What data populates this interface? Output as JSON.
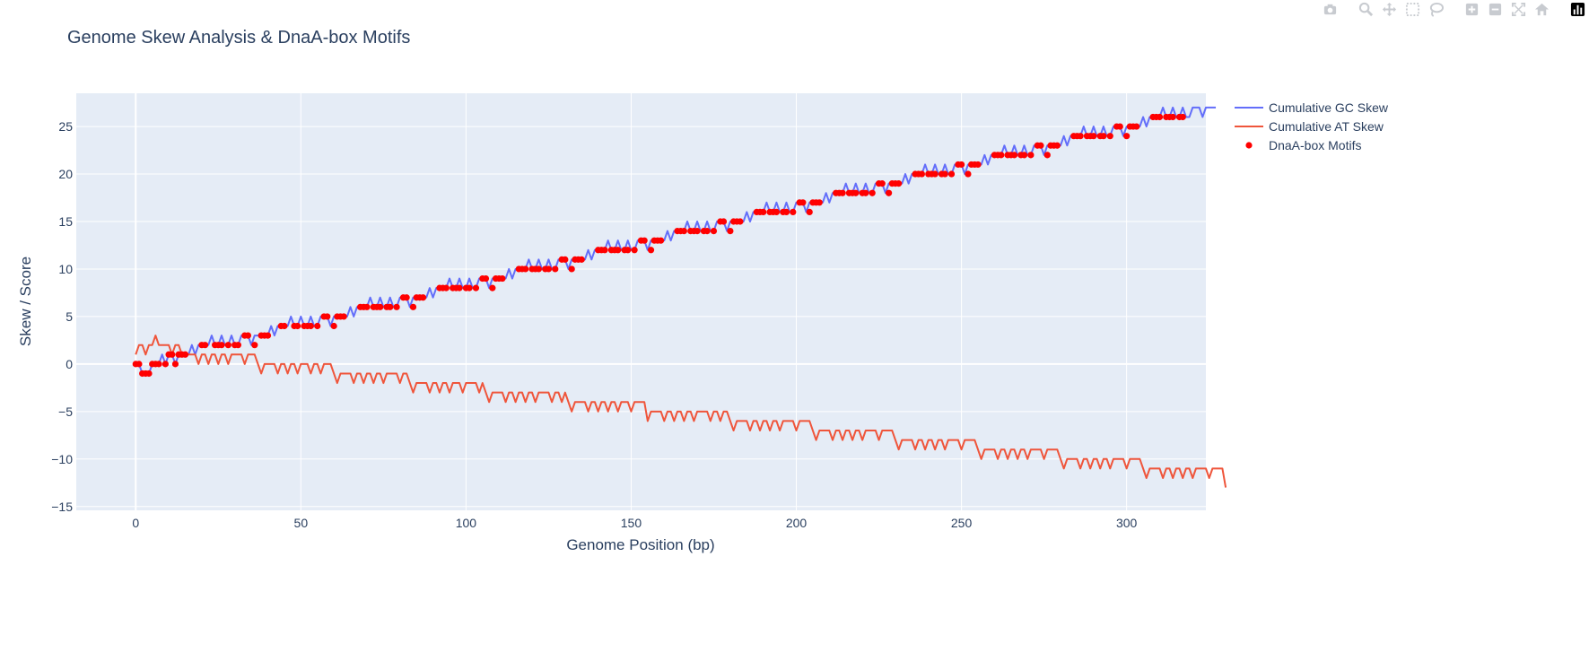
{
  "modebar": {
    "buttons": [
      {
        "name": "camera-icon",
        "group": 0
      },
      {
        "name": "zoom-icon",
        "group": 1
      },
      {
        "name": "pan-icon",
        "group": 1
      },
      {
        "name": "box-select-icon",
        "group": 1
      },
      {
        "name": "lasso-select-icon",
        "group": 1
      },
      {
        "name": "zoom-in-icon",
        "group": 2
      },
      {
        "name": "zoom-out-icon",
        "group": 2
      },
      {
        "name": "autoscale-icon",
        "group": 2
      },
      {
        "name": "reset-axes-icon",
        "group": 2
      },
      {
        "name": "plotly-logo-icon",
        "group": 3
      }
    ]
  },
  "colors": {
    "plot_bg": "#e5ecf6",
    "grid": "#ffffff",
    "text": "#2a3f5f",
    "gc": "#636efa",
    "at": "#ef553b",
    "motif": "#ff0000",
    "icon": "#c8cbd0"
  },
  "chart_data": {
    "type": "line",
    "title": "Genome Skew Analysis & DnaA-box Motifs",
    "xlabel": "Genome Position (bp)",
    "ylabel": "Skew / Score",
    "xlim": [
      -18,
      324
    ],
    "ylim": [
      -15.4,
      28.5
    ],
    "xticks": [
      0,
      50,
      100,
      150,
      200,
      250,
      300
    ],
    "yticks": [
      -15,
      -10,
      -5,
      0,
      5,
      10,
      15,
      20,
      25
    ],
    "ytick_labels": [
      "−15",
      "−10",
      "−5",
      "0",
      "5",
      "10",
      "15",
      "20",
      "25"
    ],
    "grid": true,
    "legend_position": "right",
    "series": [
      {
        "name": "Cumulative GC Skew",
        "kind": "line",
        "x_start": 0,
        "x_step": 1,
        "values": [
          0,
          0,
          -1,
          -1,
          -1,
          0,
          0,
          0,
          1,
          0,
          1,
          1,
          0,
          1,
          1,
          1,
          1,
          2,
          1,
          2,
          2,
          2,
          2,
          3,
          2,
          2,
          3,
          2,
          2,
          3,
          2,
          2,
          3,
          3,
          3,
          2,
          3,
          3,
          3,
          3,
          3,
          4,
          3,
          4,
          4,
          4,
          4,
          5,
          4,
          4,
          5,
          4,
          4,
          5,
          4,
          4,
          5,
          5,
          5,
          4,
          5,
          5,
          5,
          5,
          5,
          6,
          5,
          6,
          6,
          6,
          6,
          7,
          6,
          6,
          7,
          6,
          6,
          7,
          6,
          6,
          7,
          7,
          7,
          6,
          7,
          7,
          7,
          7,
          7,
          8,
          7,
          8,
          8,
          8,
          8,
          9,
          8,
          8,
          9,
          8,
          8,
          9,
          8,
          8,
          9,
          9,
          9,
          8,
          9,
          9,
          9,
          9,
          9,
          10,
          9,
          10,
          10,
          10,
          10,
          11,
          10,
          10,
          11,
          10,
          10,
          11,
          10,
          10,
          11,
          11,
          11,
          10,
          11,
          11,
          11,
          11,
          11,
          12,
          11,
          12,
          12,
          12,
          12,
          13,
          12,
          12,
          13,
          12,
          12,
          13,
          12,
          12,
          13,
          13,
          13,
          12,
          13,
          13,
          13,
          13,
          13,
          14,
          13,
          14,
          14,
          14,
          14,
          15,
          14,
          14,
          15,
          14,
          14,
          15,
          14,
          14,
          15,
          15,
          15,
          14,
          15,
          15,
          15,
          15,
          15,
          16,
          15,
          16,
          16,
          16,
          16,
          17,
          16,
          16,
          17,
          16,
          16,
          17,
          16,
          16,
          17,
          17,
          17,
          16,
          17,
          17,
          17,
          17,
          17,
          18,
          17,
          18,
          18,
          18,
          18,
          19,
          18,
          18,
          19,
          18,
          18,
          19,
          18,
          18,
          19,
          19,
          19,
          18,
          19,
          19,
          19,
          19,
          19,
          20,
          19,
          20,
          20,
          20,
          20,
          21,
          20,
          20,
          21,
          20,
          20,
          21,
          20,
          20,
          21,
          21,
          21,
          20,
          21,
          21,
          21,
          21,
          21,
          22,
          21,
          22,
          22,
          22,
          22,
          23,
          22,
          22,
          23,
          22,
          22,
          23,
          22,
          22,
          23,
          23,
          23,
          22,
          23,
          23,
          23,
          23,
          23,
          24,
          23,
          24,
          24,
          24,
          24,
          25,
          24,
          24,
          25,
          24,
          24,
          25,
          24,
          24,
          25,
          25,
          25,
          24,
          25,
          25,
          25,
          25,
          25,
          26,
          25,
          26,
          26,
          26,
          26,
          27,
          26,
          26,
          27,
          26,
          26,
          27,
          26,
          26,
          27,
          27,
          27,
          26,
          27,
          27,
          27,
          27
        ]
      },
      {
        "name": "Cumulative AT Skew",
        "kind": "line",
        "x_start": 0,
        "x_step": 1,
        "values": [
          1,
          2,
          2,
          1,
          2,
          2,
          3,
          2,
          2,
          2,
          2,
          1,
          2,
          2,
          1,
          1,
          1,
          1,
          1,
          0,
          1,
          1,
          0,
          1,
          1,
          0,
          1,
          1,
          0,
          1,
          1,
          1,
          1,
          0,
          1,
          1,
          1,
          0,
          -1,
          0,
          0,
          0,
          0,
          -1,
          0,
          0,
          -1,
          0,
          0,
          -1,
          0,
          0,
          0,
          -1,
          0,
          0,
          -1,
          0,
          0,
          0,
          -1,
          -2,
          -1,
          -1,
          -1,
          -1,
          -2,
          -1,
          -1,
          -2,
          -1,
          -1,
          -2,
          -1,
          -1,
          -2,
          -1,
          -1,
          -1,
          -1,
          -2,
          -1,
          -1,
          -2,
          -3,
          -2,
          -2,
          -2,
          -2,
          -3,
          -2,
          -2,
          -3,
          -2,
          -2,
          -3,
          -2,
          -2,
          -2,
          -3,
          -2,
          -2,
          -2,
          -2,
          -3,
          -2,
          -3,
          -4,
          -3,
          -3,
          -3,
          -3,
          -4,
          -3,
          -3,
          -4,
          -3,
          -3,
          -4,
          -3,
          -3,
          -4,
          -3,
          -3,
          -3,
          -3,
          -4,
          -3,
          -3,
          -4,
          -3,
          -4,
          -5,
          -4,
          -4,
          -4,
          -4,
          -5,
          -4,
          -4,
          -5,
          -4,
          -4,
          -5,
          -4,
          -4,
          -5,
          -4,
          -4,
          -4,
          -5,
          -4,
          -4,
          -4,
          -4,
          -6,
          -5,
          -5,
          -5,
          -5,
          -6,
          -5,
          -5,
          -6,
          -5,
          -5,
          -6,
          -5,
          -5,
          -6,
          -5,
          -5,
          -5,
          -5,
          -6,
          -5,
          -5,
          -6,
          -5,
          -5,
          -6,
          -7,
          -6,
          -6,
          -6,
          -6,
          -7,
          -6,
          -6,
          -7,
          -6,
          -6,
          -7,
          -6,
          -6,
          -7,
          -6,
          -6,
          -6,
          -6,
          -7,
          -6,
          -6,
          -6,
          -6,
          -7,
          -8,
          -7,
          -7,
          -7,
          -7,
          -8,
          -7,
          -7,
          -8,
          -7,
          -7,
          -8,
          -7,
          -7,
          -8,
          -7,
          -7,
          -7,
          -7,
          -8,
          -7,
          -7,
          -7,
          -7,
          -8,
          -9,
          -8,
          -8,
          -8,
          -8,
          -9,
          -8,
          -8,
          -9,
          -8,
          -8,
          -9,
          -8,
          -8,
          -9,
          -8,
          -8,
          -8,
          -8,
          -9,
          -8,
          -8,
          -8,
          -8,
          -9,
          -10,
          -9,
          -9,
          -9,
          -9,
          -10,
          -9,
          -9,
          -10,
          -9,
          -9,
          -10,
          -9,
          -9,
          -10,
          -9,
          -9,
          -9,
          -9,
          -10,
          -9,
          -9,
          -9,
          -9,
          -10,
          -11,
          -10,
          -10,
          -10,
          -10,
          -11,
          -10,
          -10,
          -11,
          -10,
          -10,
          -11,
          -10,
          -10,
          -11,
          -10,
          -10,
          -10,
          -10,
          -11,
          -10,
          -10,
          -10,
          -10,
          -11,
          -12,
          -11,
          -11,
          -11,
          -11,
          -12,
          -11,
          -11,
          -12,
          -11,
          -11,
          -12,
          -11,
          -11,
          -12,
          -11,
          -11,
          -11,
          -11,
          -12,
          -11,
          -11,
          -11,
          -11,
          -13
        ]
      },
      {
        "name": "DnaA-box Motifs",
        "kind": "markers",
        "x_start": 0,
        "x_step": 1,
        "values": [
          0,
          0,
          -1,
          -1,
          -1,
          0,
          0,
          0,
          null,
          0,
          1,
          1,
          0,
          1,
          1,
          1,
          null,
          null,
          null,
          null,
          2,
          2,
          null,
          null,
          2,
          2,
          2,
          null,
          2,
          null,
          2,
          2,
          null,
          3,
          3,
          null,
          2,
          null,
          3,
          3,
          3,
          null,
          null,
          null,
          4,
          4,
          null,
          null,
          4,
          4,
          null,
          4,
          4,
          4,
          null,
          4,
          null,
          5,
          5,
          null,
          4,
          5,
          5,
          5,
          null,
          null,
          null,
          null,
          6,
          6,
          6,
          null,
          6,
          6,
          6,
          null,
          6,
          6,
          null,
          6,
          null,
          7,
          7,
          null,
          6,
          7,
          7,
          7,
          null,
          null,
          null,
          null,
          8,
          8,
          8,
          null,
          8,
          8,
          8,
          null,
          8,
          8,
          null,
          8,
          null,
          9,
          9,
          null,
          8,
          9,
          9,
          9,
          null,
          null,
          null,
          null,
          10,
          10,
          10,
          null,
          10,
          10,
          10,
          null,
          10,
          10,
          null,
          10,
          null,
          11,
          11,
          null,
          10,
          11,
          11,
          11,
          null,
          null,
          null,
          null,
          12,
          12,
          12,
          null,
          12,
          12,
          12,
          null,
          12,
          12,
          null,
          12,
          null,
          13,
          13,
          null,
          12,
          13,
          13,
          13,
          null,
          null,
          null,
          null,
          14,
          14,
          14,
          null,
          14,
          14,
          14,
          null,
          14,
          14,
          null,
          14,
          null,
          15,
          15,
          null,
          14,
          15,
          15,
          15,
          null,
          null,
          null,
          null,
          16,
          16,
          16,
          null,
          16,
          16,
          16,
          null,
          16,
          16,
          null,
          16,
          null,
          17,
          17,
          null,
          16,
          17,
          17,
          17,
          null,
          null,
          null,
          null,
          18,
          18,
          18,
          null,
          18,
          18,
          18,
          null,
          18,
          18,
          null,
          18,
          null,
          19,
          19,
          null,
          18,
          19,
          19,
          19,
          null,
          null,
          null,
          null,
          20,
          20,
          20,
          null,
          20,
          20,
          20,
          null,
          20,
          20,
          null,
          20,
          null,
          21,
          21,
          null,
          20,
          21,
          21,
          21,
          null,
          null,
          null,
          null,
          22,
          22,
          22,
          null,
          22,
          22,
          22,
          null,
          22,
          22,
          null,
          22,
          null,
          23,
          23,
          null,
          22,
          23,
          23,
          23,
          null,
          null,
          null,
          null,
          24,
          24,
          24,
          null,
          24,
          24,
          24,
          null,
          24,
          24,
          null,
          24,
          null,
          25,
          25,
          null,
          24,
          25,
          25,
          25,
          null,
          null,
          null,
          null,
          26,
          26,
          26,
          null,
          26,
          26,
          26,
          null,
          26,
          26
        ]
      }
    ]
  }
}
